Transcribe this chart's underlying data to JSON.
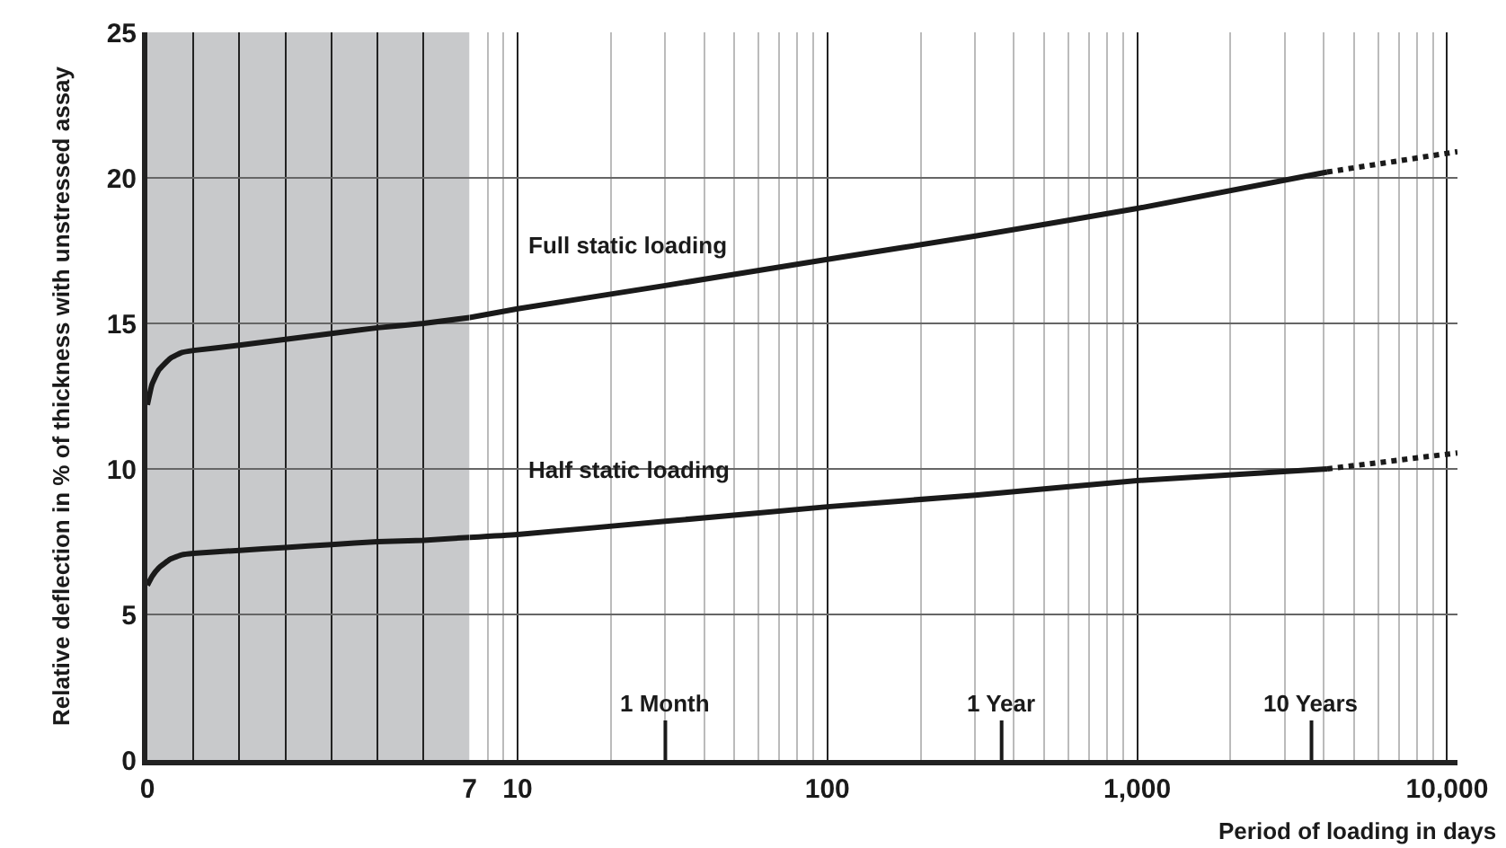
{
  "chart_data": [
    {
      "type": "line",
      "ylabel": "Relative deflection in % of thickness with unstressed assay",
      "xlim": [
        0,
        7
      ],
      "xticks": [
        0,
        {
          "value": 1,
          "label": null
        },
        {
          "value": 2,
          "label": null
        },
        {
          "value": 3,
          "label": null
        },
        {
          "value": 4,
          "label": null
        },
        {
          "value": 5,
          "label": null
        },
        {
          "value": 6,
          "label": null
        },
        7
      ],
      "ylim": [
        0,
        25
      ],
      "yticks": [
        0,
        5,
        10,
        15,
        20,
        25
      ],
      "grid": true,
      "legend": false,
      "bands": [
        {
          "axis": "x",
          "from": 0,
          "to": 7,
          "color": "#c8c9cb"
        }
      ],
      "series": [
        {
          "color": "#1a1a1a",
          "x": [
            0,
            0.1,
            0.25,
            0.5,
            0.75,
            1,
            2,
            3,
            4,
            5,
            6,
            7
          ],
          "values": [
            12.2,
            12.9,
            13.4,
            13.8,
            14.0,
            14.07,
            14.25,
            14.45,
            14.65,
            14.85,
            15.0,
            15.2
          ]
        },
        {
          "color": "#1a1a1a",
          "x": [
            0,
            0.1,
            0.25,
            0.5,
            0.75,
            1,
            2,
            3,
            4,
            5,
            6,
            7
          ],
          "values": [
            6.0,
            6.3,
            6.6,
            6.9,
            7.05,
            7.1,
            7.2,
            7.3,
            7.4,
            7.5,
            7.55,
            7.65
          ]
        }
      ]
    },
    {
      "type": "line",
      "xlabel": "Period of loading in days",
      "log": "x",
      "xlim": [
        7,
        10800
      ],
      "xticks": [
        10,
        100,
        {
          "value": 1000,
          "label": "1,000"
        },
        {
          "value": 10000,
          "label": "10,000"
        }
      ],
      "ylim": [
        0,
        25
      ],
      "yticks": [
        0,
        5,
        10,
        15,
        20,
        25
      ],
      "grid": true,
      "legend": false,
      "tick_labels": "x",
      "ref_lines": [
        {
          "axis": "x",
          "value": 30,
          "label": "1 Month"
        },
        {
          "axis": "x",
          "value": 365,
          "label": "1 Year"
        },
        {
          "axis": "x",
          "value": 3650,
          "label": "10 Years"
        }
      ],
      "series": [
        {
          "name": "Full static loading",
          "color": "#1a1a1a",
          "line_style": "solid",
          "x": [
            7,
            10,
            30,
            100,
            300,
            1000,
            4100
          ],
          "values": [
            15.2,
            15.5,
            16.3,
            17.2,
            18.0,
            18.95,
            20.2
          ]
        },
        {
          "color": "#1a1a1a",
          "line_style": "dotted",
          "x": [
            4100,
            10800
          ],
          "values": [
            20.2,
            20.9
          ]
        },
        {
          "name": "Half static loading",
          "color": "#1a1a1a",
          "line_style": "solid",
          "x": [
            7,
            10,
            30,
            100,
            300,
            1000,
            4100
          ],
          "values": [
            7.65,
            7.75,
            8.2,
            8.7,
            9.1,
            9.6,
            10.0
          ]
        },
        {
          "color": "#1a1a1a",
          "line_style": "dotted",
          "x": [
            4100,
            10800
          ],
          "values": [
            10.0,
            10.55
          ]
        }
      ]
    }
  ]
}
